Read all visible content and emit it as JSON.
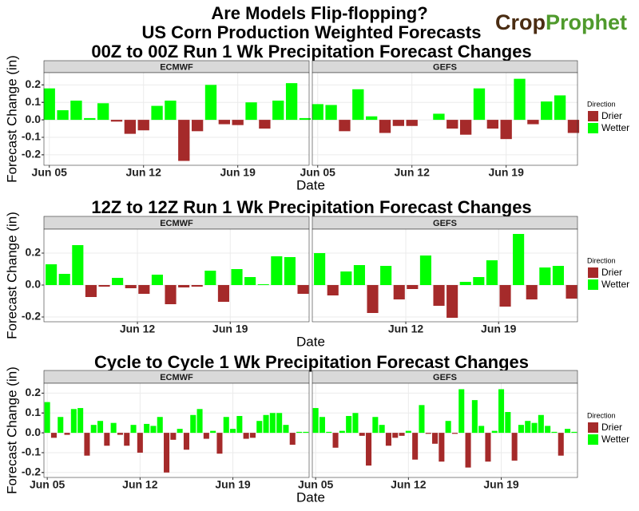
{
  "title": [
    "Are Models Flip-flopping?",
    "US Corn Production Weighted Forecasts"
  ],
  "logo": [
    "Crop",
    "Prophet"
  ],
  "chart_data": [
    {
      "type": "bar",
      "title": "00Z to 00Z Run 1 Wk Precipitation Forecast Changes",
      "ylabel": "Forecast Change (in)",
      "xlabel": "Date",
      "x": [
        5,
        6,
        7,
        8,
        9,
        10,
        11,
        12,
        13,
        14,
        15,
        16,
        17,
        18,
        19,
        20,
        21,
        22,
        23,
        24
      ],
      "xlim": [
        4.6,
        24.3
      ],
      "xticks": [
        {
          "value": 5,
          "label": "Jun 05"
        },
        {
          "value": 12,
          "label": "Jun 12"
        },
        {
          "value": 19,
          "label": "Jun 19"
        }
      ],
      "ylim": [
        -0.26,
        0.27
      ],
      "yticks": [
        -0.2,
        -0.1,
        {
          "value": 0,
          "label": "0.0"
        },
        0.1,
        0.2
      ],
      "grid": true,
      "legend": {
        "title": "Direction",
        "items": [
          {
            "name": "Drier",
            "color": "#a52a2a"
          },
          {
            "name": "Wetter",
            "color": "#00ff00"
          }
        ]
      },
      "facets": [
        {
          "label": "ECMWF",
          "values": [
            0.18,
            0.055,
            0.11,
            0.01,
            0.095,
            -0.01,
            -0.08,
            -0.06,
            0.08,
            0.11,
            -0.235,
            -0.065,
            0.2,
            -0.025,
            -0.03,
            0.1,
            -0.05,
            0.11,
            0.21,
            0.01
          ]
        },
        {
          "label": "GEFS",
          "values": [
            0.09,
            0.085,
            -0.065,
            0.175,
            0.02,
            -0.075,
            -0.035,
            -0.035,
            0,
            0.035,
            -0.05,
            -0.085,
            0.18,
            -0.05,
            -0.11,
            0.235,
            -0.025,
            0.105,
            0.14,
            -0.075
          ]
        }
      ]
    },
    {
      "type": "bar",
      "title": "12Z to 12Z Run 1 Wk Precipitation Forecast Changes",
      "ylabel": "Forecast Change (in)",
      "xlabel": "Date",
      "x": [
        5.5,
        6.5,
        7.5,
        8.5,
        9.5,
        10.5,
        11.5,
        12.5,
        13.5,
        14.5,
        15.5,
        16.5,
        17.5,
        18.5,
        19.5,
        20.5,
        21.5,
        22.5,
        23.5,
        24.5
      ],
      "xlim": [
        4.95,
        24.95
      ],
      "xticks": [
        {
          "value": 12,
          "label": "Jun 12"
        },
        {
          "value": 19,
          "label": "Jun 19"
        }
      ],
      "ylim": [
        -0.23,
        0.35
      ],
      "yticks": [
        -0.2,
        {
          "value": 0,
          "label": "0.0"
        },
        0.2
      ],
      "grid": true,
      "legend": {
        "title": "Direction",
        "items": [
          {
            "name": "Drier",
            "color": "#a52a2a"
          },
          {
            "name": "Wetter",
            "color": "#00ff00"
          }
        ]
      },
      "facets": [
        {
          "label": "ECMWF",
          "values": [
            0.13,
            0.07,
            0.25,
            -0.075,
            -0.01,
            0.045,
            -0.02,
            -0.055,
            0.065,
            -0.12,
            -0.015,
            -0.01,
            0.09,
            -0.105,
            0.1,
            0.05,
            0.005,
            0.18,
            0.175,
            -0.055
          ]
        },
        {
          "label": "GEFS",
          "values": [
            0.2,
            -0.065,
            0.085,
            0.125,
            -0.175,
            0.12,
            -0.09,
            -0.025,
            0.185,
            -0.13,
            -0.205,
            0.02,
            0.05,
            0.155,
            -0.135,
            0.32,
            -0.09,
            0.11,
            0.12,
            -0.085
          ]
        }
      ]
    },
    {
      "type": "bar",
      "title": "Cycle to Cycle 1 Wk Precipitation Forecast Changes",
      "ylabel": "Forecast Change (in)",
      "xlabel": "Date",
      "x": [
        5,
        5.5,
        6,
        6.5,
        7,
        7.5,
        8,
        8.5,
        9,
        9.5,
        10,
        10.5,
        11,
        11.5,
        12,
        12.5,
        13,
        13.5,
        14,
        14.5,
        15,
        15.5,
        16,
        16.5,
        17,
        17.5,
        18,
        18.5,
        19,
        19.5,
        20,
        20.5,
        21,
        21.5,
        22,
        22.5,
        23,
        23.5,
        24,
        24.5
      ],
      "xlim": [
        4.75,
        24.75
      ],
      "xticks": [
        {
          "value": 5,
          "label": "Jun 05"
        },
        {
          "value": 12,
          "label": "Jun 12"
        },
        {
          "value": 19,
          "label": "Jun 19"
        }
      ],
      "ylim": [
        -0.225,
        0.25
      ],
      "yticks": [
        -0.2,
        -0.1,
        {
          "value": 0,
          "label": "0.0"
        },
        0.1,
        0.2
      ],
      "grid": true,
      "legend": {
        "title": "Direction",
        "items": [
          {
            "name": "Drier",
            "color": "#a52a2a"
          },
          {
            "name": "Wetter",
            "color": "#00ff00"
          }
        ]
      },
      "facets": [
        {
          "label": "ECMWF",
          "values": [
            0.155,
            -0.025,
            0.08,
            -0.01,
            0.12,
            0.125,
            -0.115,
            0.04,
            0.06,
            -0.065,
            0.05,
            -0.01,
            -0.065,
            0.04,
            -0.1,
            0.045,
            0.035,
            0.08,
            -0.2,
            -0.035,
            0.02,
            -0.085,
            0.09,
            0.12,
            -0.03,
            0.01,
            -0.105,
            0.08,
            0.02,
            0.085,
            -0.03,
            -0.025,
            0.06,
            0.09,
            0.1,
            0.1,
            0.04,
            -0.06,
            0.005,
            0.005
          ]
        },
        {
          "label": "GEFS",
          "values": [
            0.125,
            0.08,
            0.005,
            -0.075,
            0.01,
            0.085,
            0.1,
            -0.015,
            -0.165,
            0.08,
            0.04,
            -0.065,
            -0.025,
            -0.015,
            0.01,
            -0.135,
            0.14,
            -0.005,
            -0.055,
            -0.145,
            0.06,
            -0.005,
            0.22,
            -0.175,
            0.165,
            0.035,
            -0.145,
            0.01,
            0.22,
            0.105,
            -0.14,
            0.04,
            0.06,
            0.05,
            0.09,
            0.035,
            0.005,
            -0.115,
            0.02,
            0.005
          ]
        }
      ]
    }
  ]
}
